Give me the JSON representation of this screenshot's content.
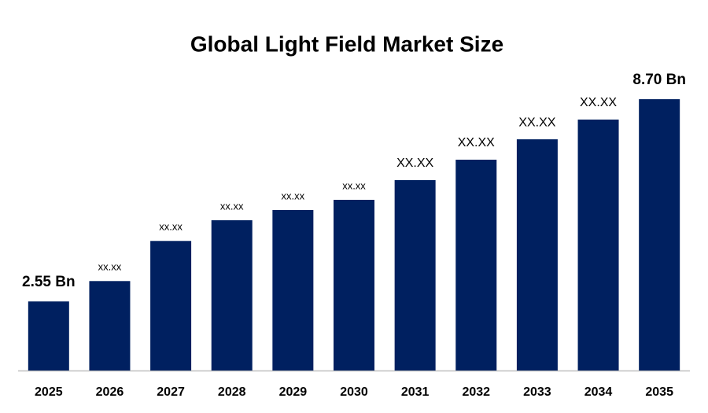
{
  "chart_data": {
    "type": "bar",
    "title": "Global Light Field Market Size",
    "categories": [
      "2025",
      "2026",
      "2027",
      "2028",
      "2029",
      "2030",
      "2031",
      "2032",
      "2033",
      "2034",
      "2035"
    ],
    "values": [
      2.55,
      3.17,
      4.39,
      5.02,
      5.33,
      5.64,
      6.24,
      6.86,
      7.48,
      8.08,
      8.7
    ],
    "value_labels": [
      "2.55 Bn",
      "xx.xx",
      "xx.xx",
      "xx.xx",
      "xx.xx",
      "xx.xx",
      "XX.XX",
      "XX.XX",
      "XX.XX",
      "XX.XX",
      "8.70 Bn"
    ],
    "color": "#002060",
    "ylim": [
      0.45,
      9.3
    ]
  }
}
